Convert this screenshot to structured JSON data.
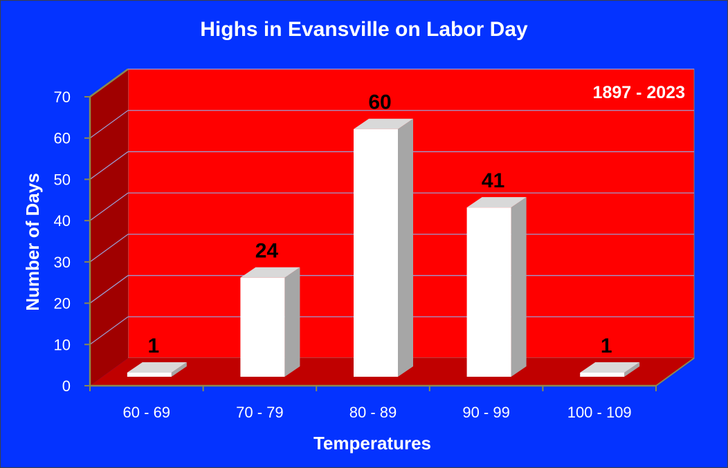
{
  "chart_data": {
    "type": "bar",
    "title": "Highs in Evansville on Labor Day",
    "annotation": "1897 - 2023",
    "xlabel": "Temperatures",
    "ylabel": "Number of Days",
    "categories": [
      "60 - 69",
      "70 - 79",
      "80 - 89",
      "90 - 99",
      "100 - 109"
    ],
    "values": [
      1,
      24,
      60,
      41,
      1
    ],
    "ylim": [
      0,
      70
    ],
    "yticks": [
      0,
      10,
      20,
      30,
      40,
      50,
      60,
      70
    ],
    "grid": true,
    "legend": "none",
    "colors": {
      "background": "#0433ff",
      "back_wall": "#ff0000",
      "side_wall": "#a00000",
      "floor": "#c00000",
      "bar_front": "#ffffff",
      "bar_side": "#a6a6a6",
      "bar_top": "#d9d9d9",
      "gridline": "#9b9bd0",
      "data_label": "#000000",
      "text": "#ffffff"
    }
  }
}
